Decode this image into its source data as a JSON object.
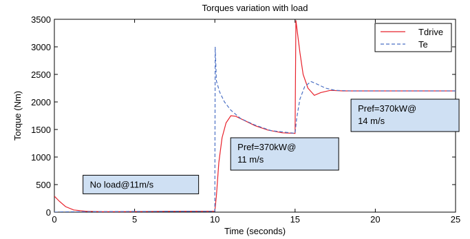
{
  "chart_data": {
    "type": "line",
    "title": "Torques variation with load",
    "xlabel": "Time (seconds)",
    "ylabel": "Torque (Nm)",
    "xlim": [
      0,
      25
    ],
    "ylim": [
      0,
      3500
    ],
    "xticks": [
      0,
      5,
      10,
      15,
      20,
      25
    ],
    "yticks": [
      0,
      500,
      1000,
      1500,
      2000,
      2500,
      3000,
      3500
    ],
    "grid": false,
    "legend_position": "top-right",
    "series": [
      {
        "name": "Tdrive",
        "color": "#e8202a",
        "dash": "solid",
        "x": [
          0,
          0.3,
          0.7,
          1.2,
          2,
          3,
          5,
          7,
          9.99,
          10.0,
          10.1,
          10.25,
          10.45,
          10.7,
          11.0,
          11.3,
          11.8,
          12.5,
          13.3,
          14.2,
          14.99,
          15.0,
          15.05,
          15.15,
          15.3,
          15.5,
          15.8,
          16.2,
          16.6,
          17.2,
          18.0,
          19.0,
          25.0
        ],
        "y": [
          290,
          200,
          100,
          40,
          15,
          8,
          10,
          14,
          18,
          20,
          300,
          900,
          1350,
          1620,
          1750,
          1740,
          1670,
          1570,
          1490,
          1440,
          1430,
          1430,
          3480,
          3250,
          2900,
          2500,
          2250,
          2120,
          2170,
          2210,
          2200,
          2200,
          2200
        ]
      },
      {
        "name": "Te",
        "color": "#4a6fc4",
        "dash": "dashed",
        "x": [
          0,
          0.5,
          1.5,
          3,
          5,
          7,
          9.99,
          10.0,
          10.02,
          10.1,
          10.3,
          10.6,
          11.0,
          11.6,
          12.5,
          13.5,
          14.99,
          15.0,
          15.1,
          15.3,
          15.6,
          16.0,
          16.4,
          16.9,
          17.5,
          18.5,
          25.0
        ],
        "y": [
          0,
          5,
          8,
          10,
          12,
          14,
          15,
          15,
          3000,
          2380,
          2180,
          2000,
          1850,
          1700,
          1580,
          1480,
          1430,
          1430,
          1700,
          2050,
          2280,
          2370,
          2320,
          2250,
          2210,
          2200,
          2200
        ]
      }
    ],
    "annotations": [
      {
        "id": "no-load",
        "lines": [
          "No load@11m/s"
        ],
        "x": 2,
        "y": 470
      },
      {
        "id": "pref-11",
        "lines": [
          "Pref=370kW@",
          "11 m/s"
        ],
        "x": 11.2,
        "y": 1150
      },
      {
        "id": "pref-14",
        "lines": [
          "Pref=370kW@",
          "14 m/s"
        ],
        "x": 18.7,
        "y": 1850
      }
    ]
  }
}
